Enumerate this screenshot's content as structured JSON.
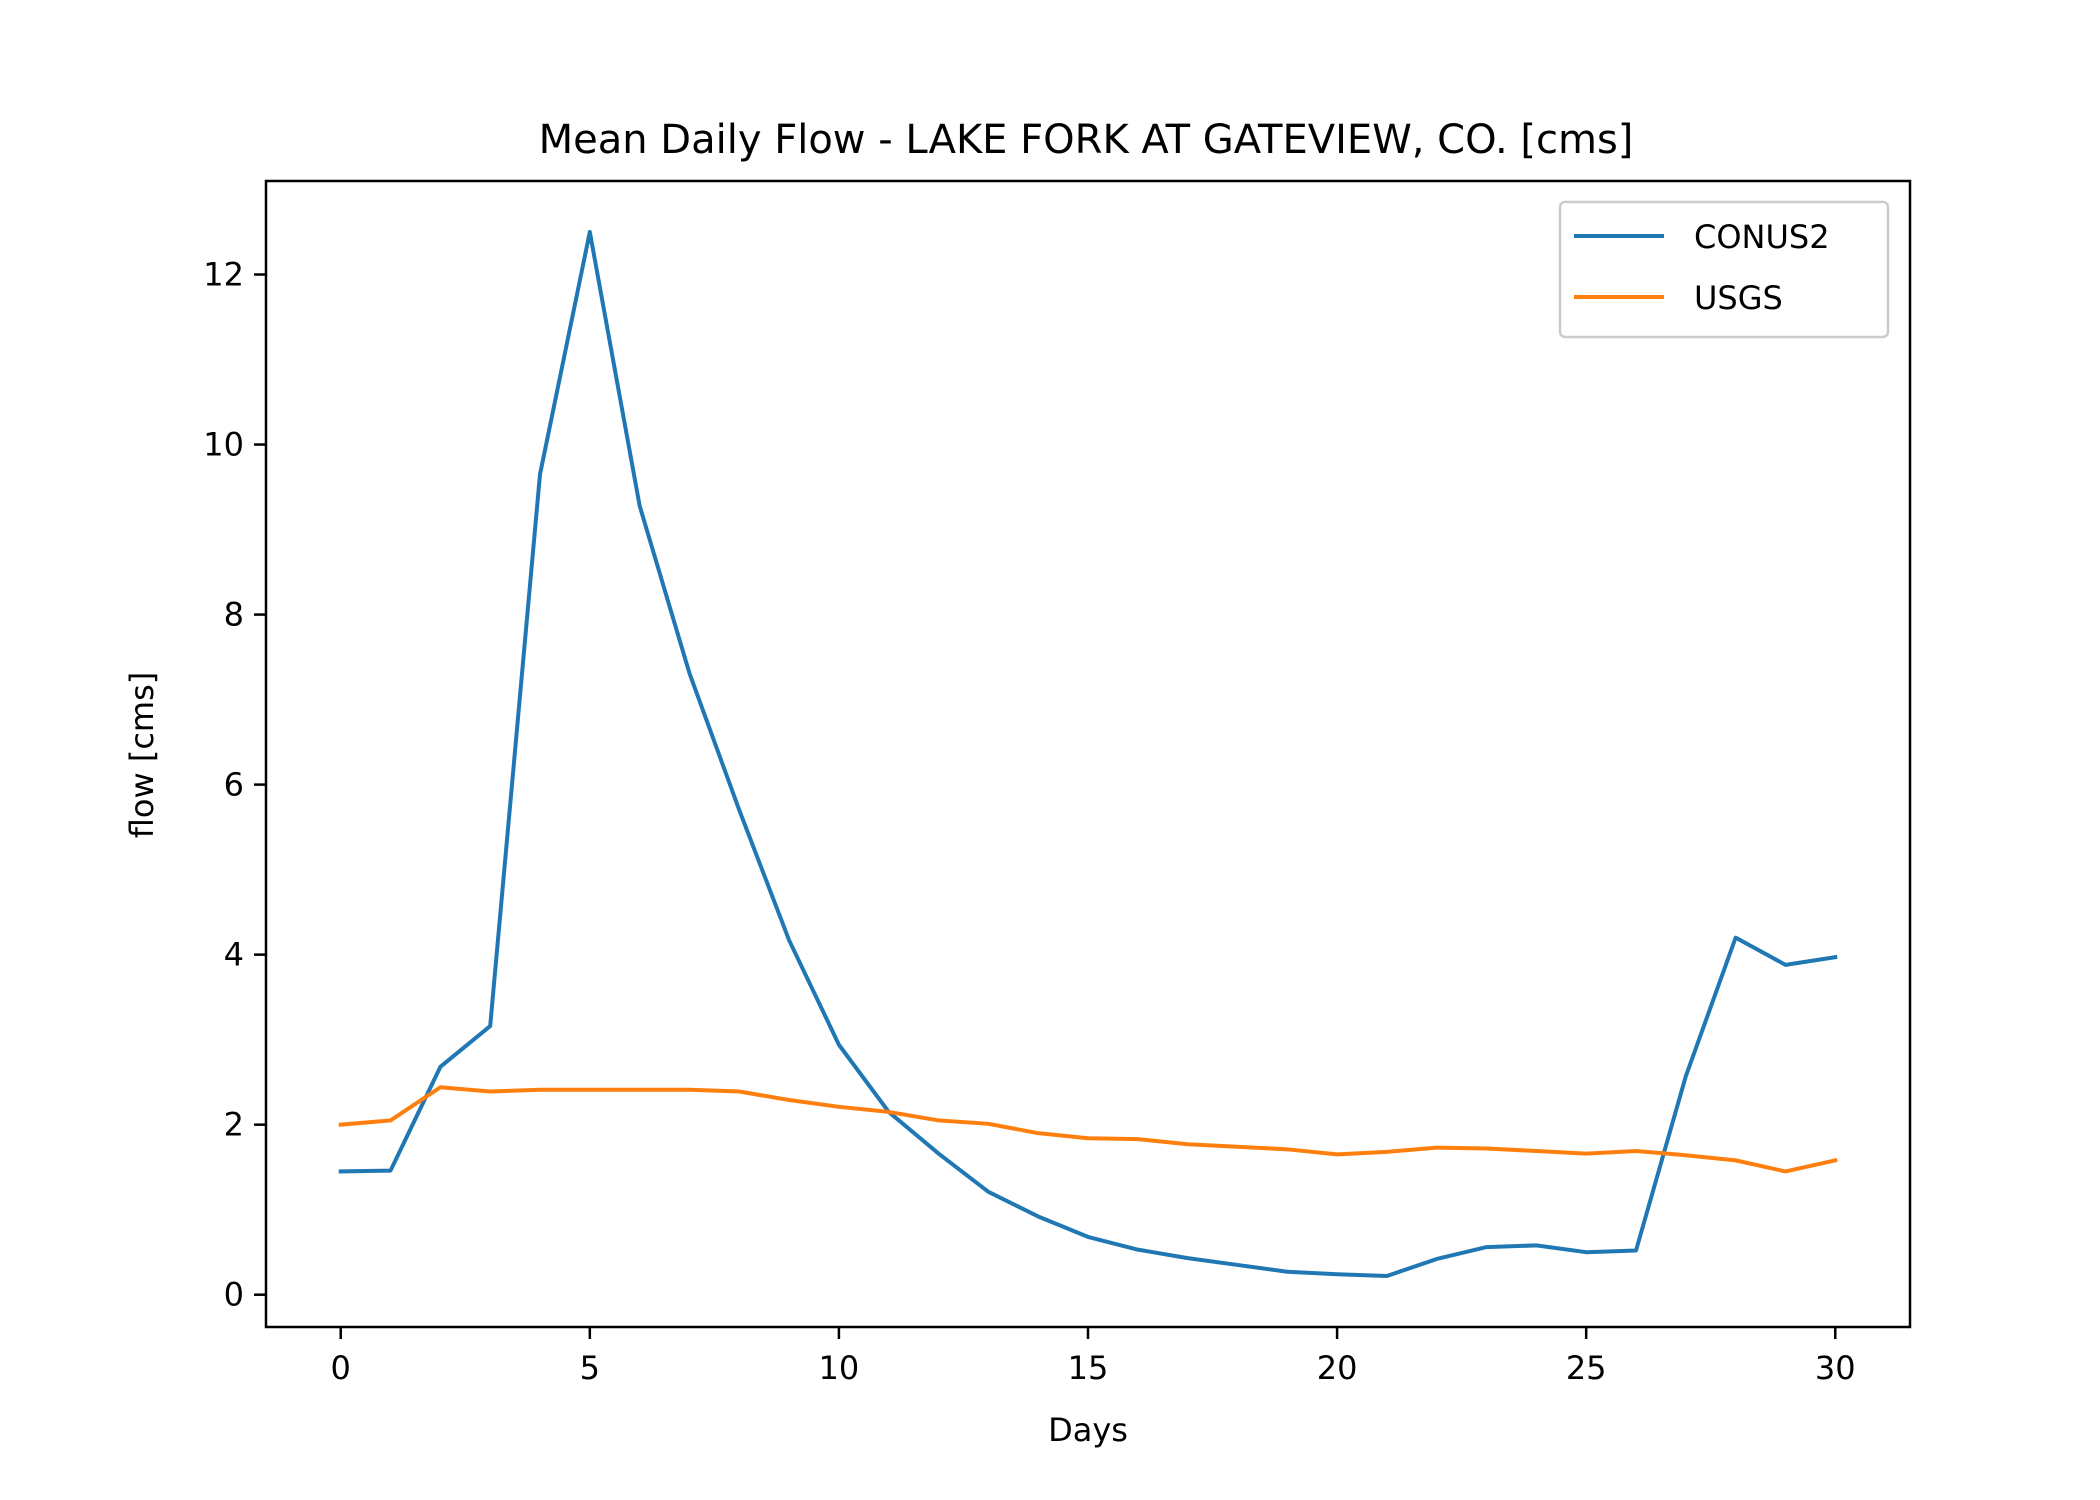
{
  "chart_data": {
    "type": "line",
    "title": "Mean Daily Flow - LAKE FORK AT GATEVIEW, CO. [cms]",
    "xlabel": "Days",
    "ylabel": "flow [cms]",
    "xlim": [
      -1.5,
      31.5
    ],
    "ylim": [
      -0.38,
      13.1
    ],
    "xticks": [
      0,
      5,
      10,
      15,
      20,
      25,
      30
    ],
    "yticks": [
      0,
      2,
      4,
      6,
      8,
      10,
      12
    ],
    "grid": false,
    "legend_position": "top-right",
    "x": [
      0,
      1,
      2,
      3,
      4,
      5,
      6,
      7,
      8,
      9,
      10,
      11,
      12,
      13,
      14,
      15,
      16,
      17,
      18,
      19,
      20,
      21,
      22,
      23,
      24,
      25,
      26,
      27,
      28,
      29,
      30
    ],
    "series": [
      {
        "name": "CONUS2",
        "color": "#1f77b4",
        "values": [
          1.45,
          1.46,
          2.68,
          3.16,
          9.65,
          12.5,
          9.28,
          7.31,
          5.7,
          4.17,
          2.94,
          2.15,
          1.66,
          1.21,
          0.92,
          0.68,
          0.53,
          0.43,
          0.35,
          0.27,
          0.24,
          0.22,
          0.42,
          0.56,
          0.58,
          0.5,
          0.52,
          2.57,
          4.2,
          3.88,
          3.97
        ]
      },
      {
        "name": "USGS",
        "color": "#ff7f0e",
        "values": [
          2.0,
          2.05,
          2.44,
          2.39,
          2.41,
          2.41,
          2.41,
          2.41,
          2.39,
          2.29,
          2.21,
          2.15,
          2.05,
          2.01,
          1.9,
          1.84,
          1.83,
          1.77,
          1.74,
          1.71,
          1.65,
          1.68,
          1.73,
          1.72,
          1.69,
          1.66,
          1.69,
          1.64,
          1.58,
          1.45,
          1.58
        ]
      }
    ]
  }
}
